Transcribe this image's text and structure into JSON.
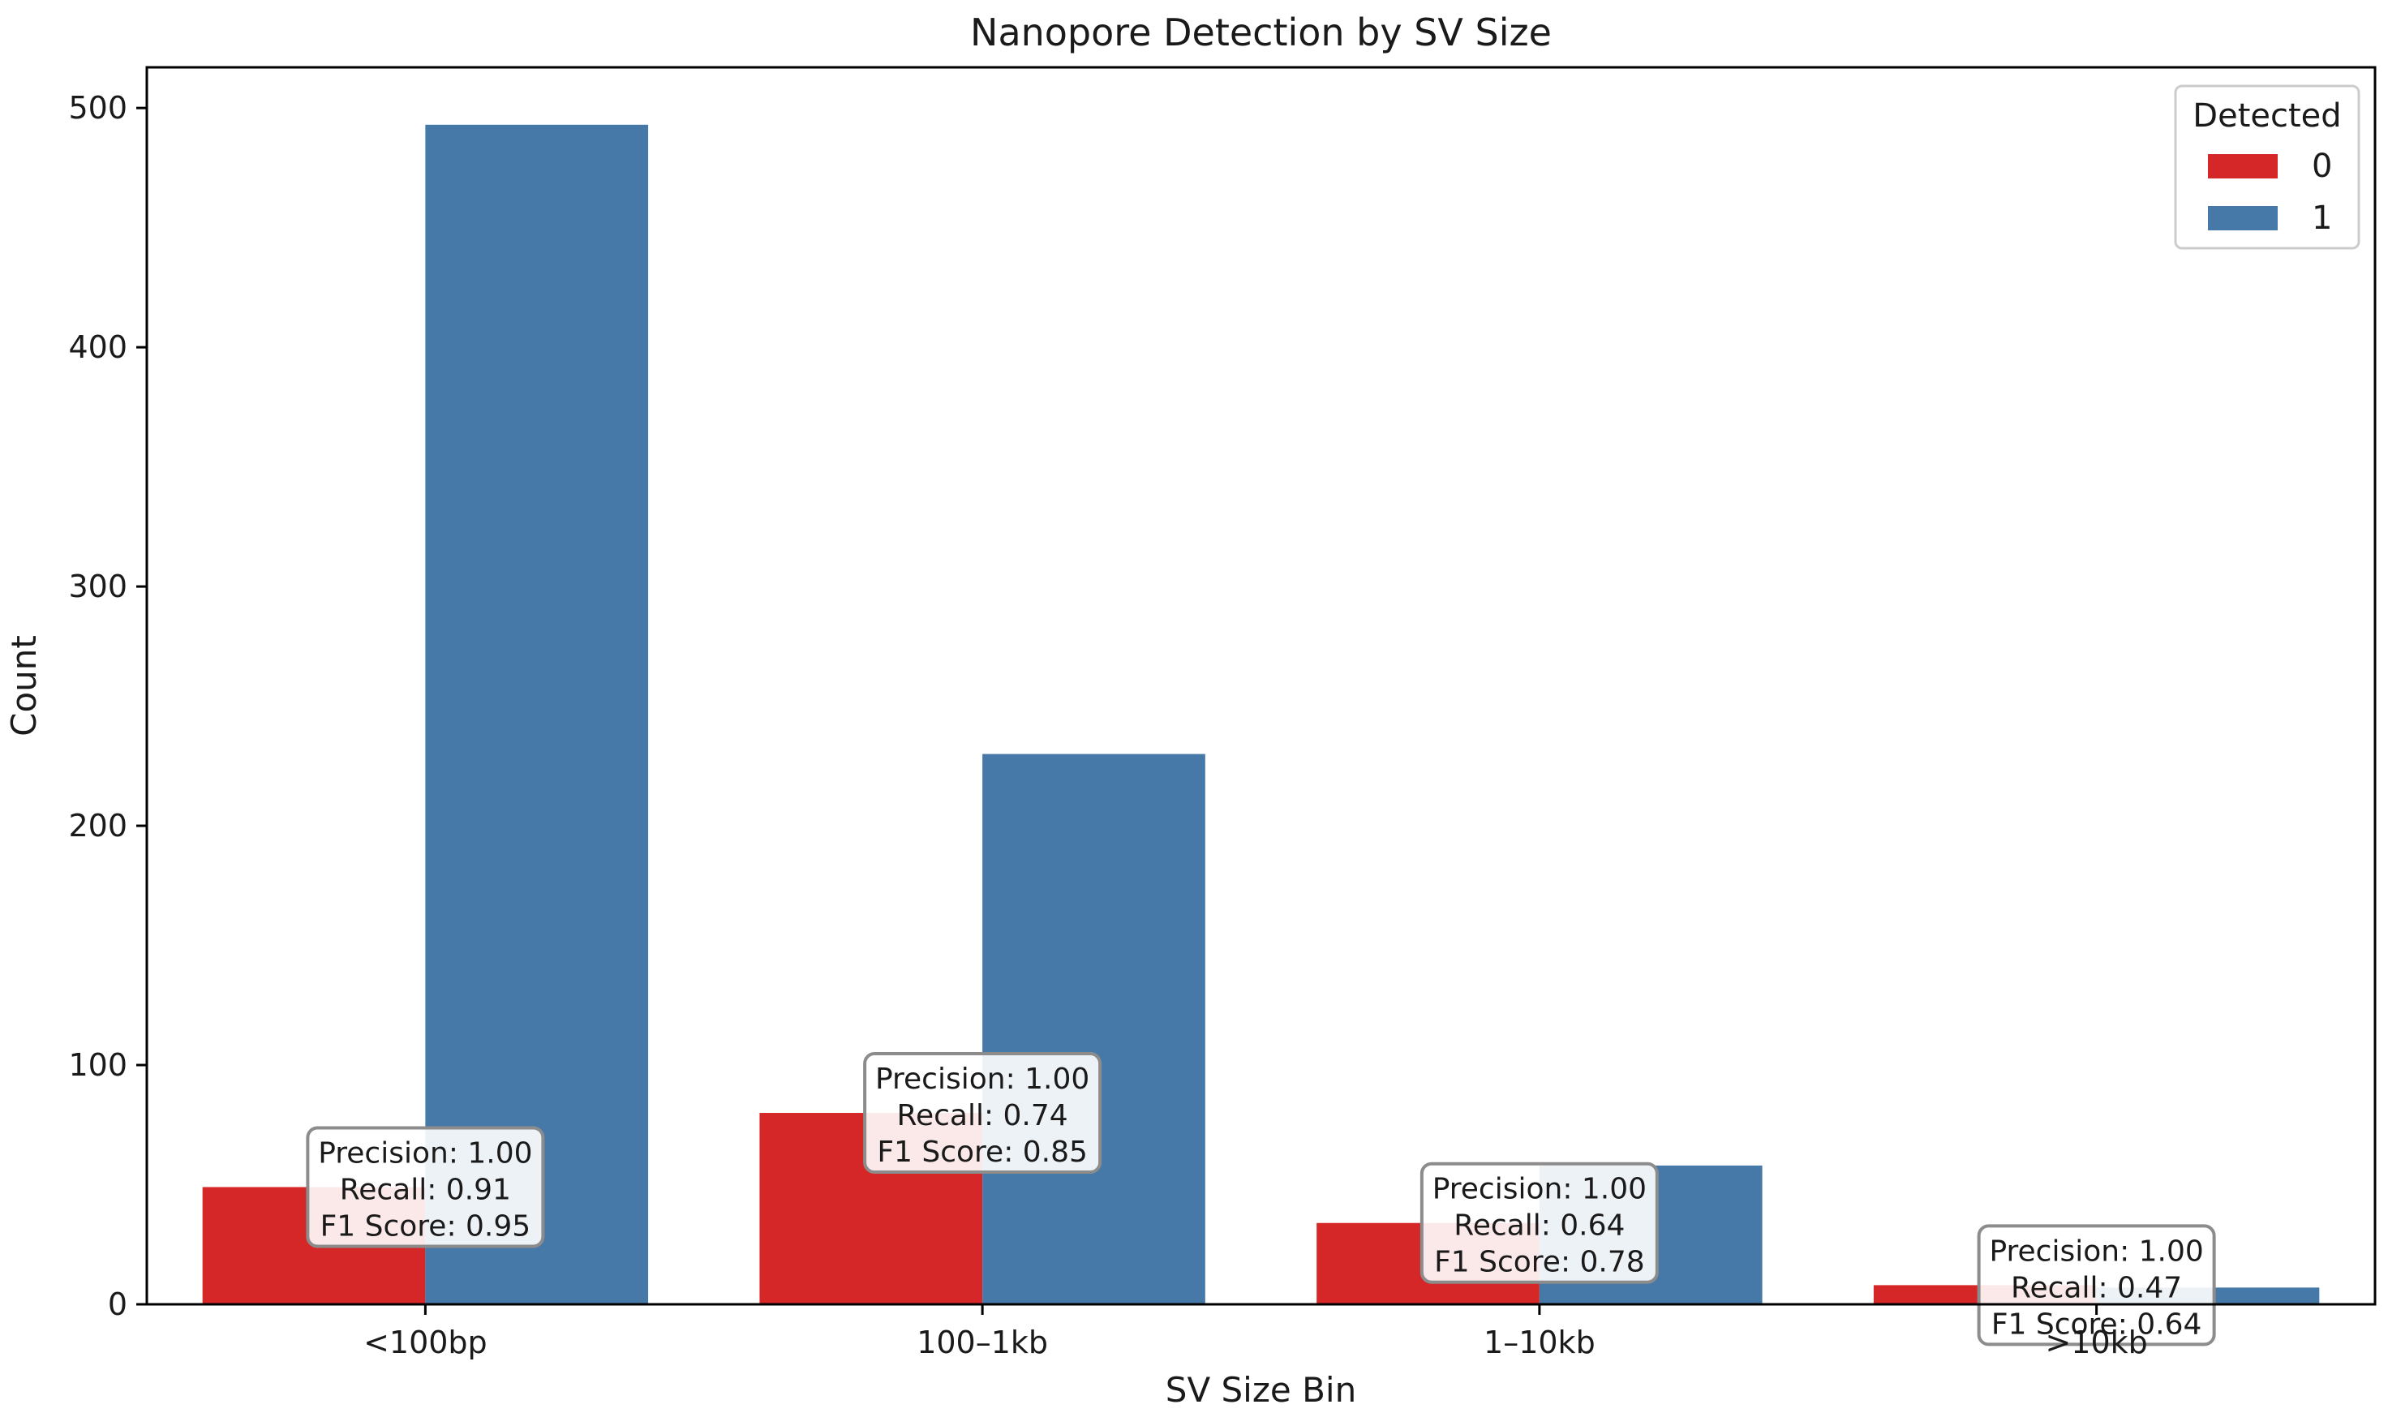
{
  "chart_data": {
    "type": "bar",
    "title": "Nanopore Detection by SV Size",
    "xlabel": "SV Size Bin",
    "ylabel": "Count",
    "categories": [
      "<100bp",
      "100–1kb",
      "1–10kb",
      ">10kb"
    ],
    "series": [
      {
        "name": "0",
        "color": "#d62728",
        "values": [
          49,
          80,
          34,
          8
        ]
      },
      {
        "name": "1",
        "color": "#4779a8",
        "values": [
          493,
          230,
          58,
          7
        ]
      }
    ],
    "ylim": [
      0,
      517
    ],
    "yticks": [
      0,
      100,
      200,
      300,
      400,
      500
    ],
    "grid": false,
    "legend": {
      "title": "Detected",
      "position": "top-right"
    },
    "annotations": [
      {
        "category": "<100bp",
        "lines": [
          "Precision: 1.00",
          "Recall:    0.91",
          "F1 Score:  0.95"
        ]
      },
      {
        "category": "100–1kb",
        "lines": [
          "Precision: 1.00",
          "Recall:    0.74",
          "F1 Score:  0.85"
        ]
      },
      {
        "category": "1–10kb",
        "lines": [
          "Precision: 1.00",
          "Recall:    0.64",
          "F1 Score:  0.78"
        ]
      },
      {
        "category": ">10kb",
        "lines": [
          "Precision: 1.00",
          "Recall:    0.47",
          "F1 Score:  0.64"
        ]
      }
    ]
  }
}
